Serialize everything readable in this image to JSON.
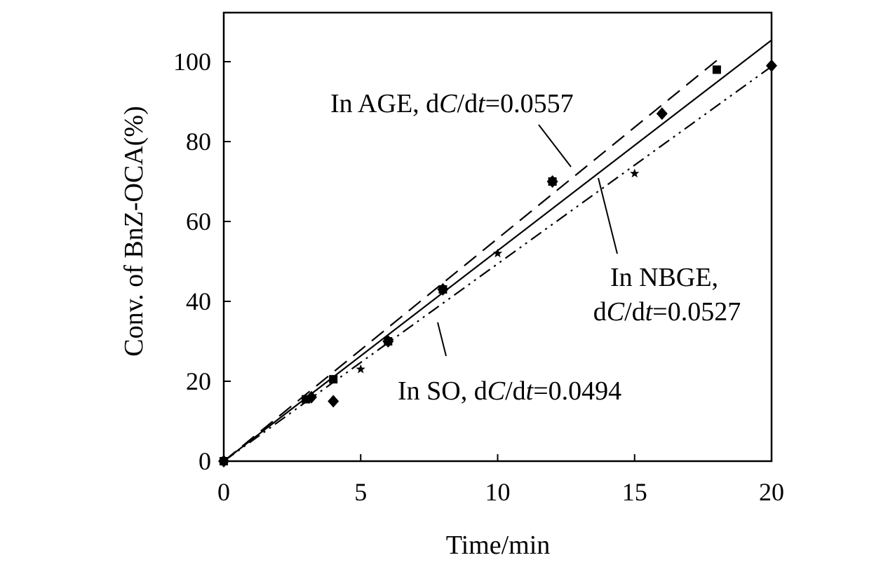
{
  "chart_data": {
    "type": "line",
    "xlabel": "Time/min",
    "ylabel": "Conv. of BnZ-OCA(%)",
    "xlim": [
      0,
      20
    ],
    "ylim": [
      0,
      100
    ],
    "x_ticks": [
      "0",
      "5",
      "10",
      "15",
      "20"
    ],
    "y_ticks": [
      "0",
      "20",
      "40",
      "60",
      "80",
      "100"
    ],
    "grid": false,
    "series": [
      {
        "key": "age",
        "style": "dashed",
        "marker": "square",
        "annotation": {
          "prefix": "In AGE, d",
          "italic_c": "C",
          "slash": "/d",
          "italic_t": "t",
          "rate": "=0.0557"
        },
        "points": [
          [
            0,
            0
          ],
          [
            3,
            15.5
          ],
          [
            4,
            20.5
          ],
          [
            6,
            30
          ],
          [
            8,
            43
          ],
          [
            12,
            70
          ],
          [
            18,
            98
          ]
        ],
        "fit": {
          "x0": 0,
          "y0": 0,
          "x1": 18,
          "y1": 100.3
        }
      },
      {
        "key": "nbge",
        "style": "solid",
        "marker": "diamond",
        "annotation": {
          "line1": "In NBGE,",
          "prefix": "d",
          "italic_c": "C",
          "slash": "/d",
          "italic_t": "t",
          "rate": "=0.0527"
        },
        "points": [
          [
            0,
            0
          ],
          [
            3.2,
            16
          ],
          [
            4,
            15
          ],
          [
            6,
            30
          ],
          [
            8,
            43
          ],
          [
            12,
            70
          ],
          [
            16,
            87
          ],
          [
            20,
            99
          ]
        ],
        "fit": {
          "x0": 0,
          "y0": 0,
          "x1": 20,
          "y1": 105.4
        }
      },
      {
        "key": "so",
        "style": "dash-dot-dot",
        "marker": "star",
        "annotation": {
          "prefix": "In SO, d",
          "italic_c": "C",
          "slash": "/d",
          "italic_t": "t",
          "rate": "=0.0494"
        },
        "points": [
          [
            0,
            0
          ],
          [
            5,
            23
          ],
          [
            10,
            52
          ],
          [
            15,
            72
          ]
        ],
        "fit": {
          "x0": 0,
          "y0": 0,
          "x1": 20,
          "y1": 98.8
        }
      }
    ]
  }
}
